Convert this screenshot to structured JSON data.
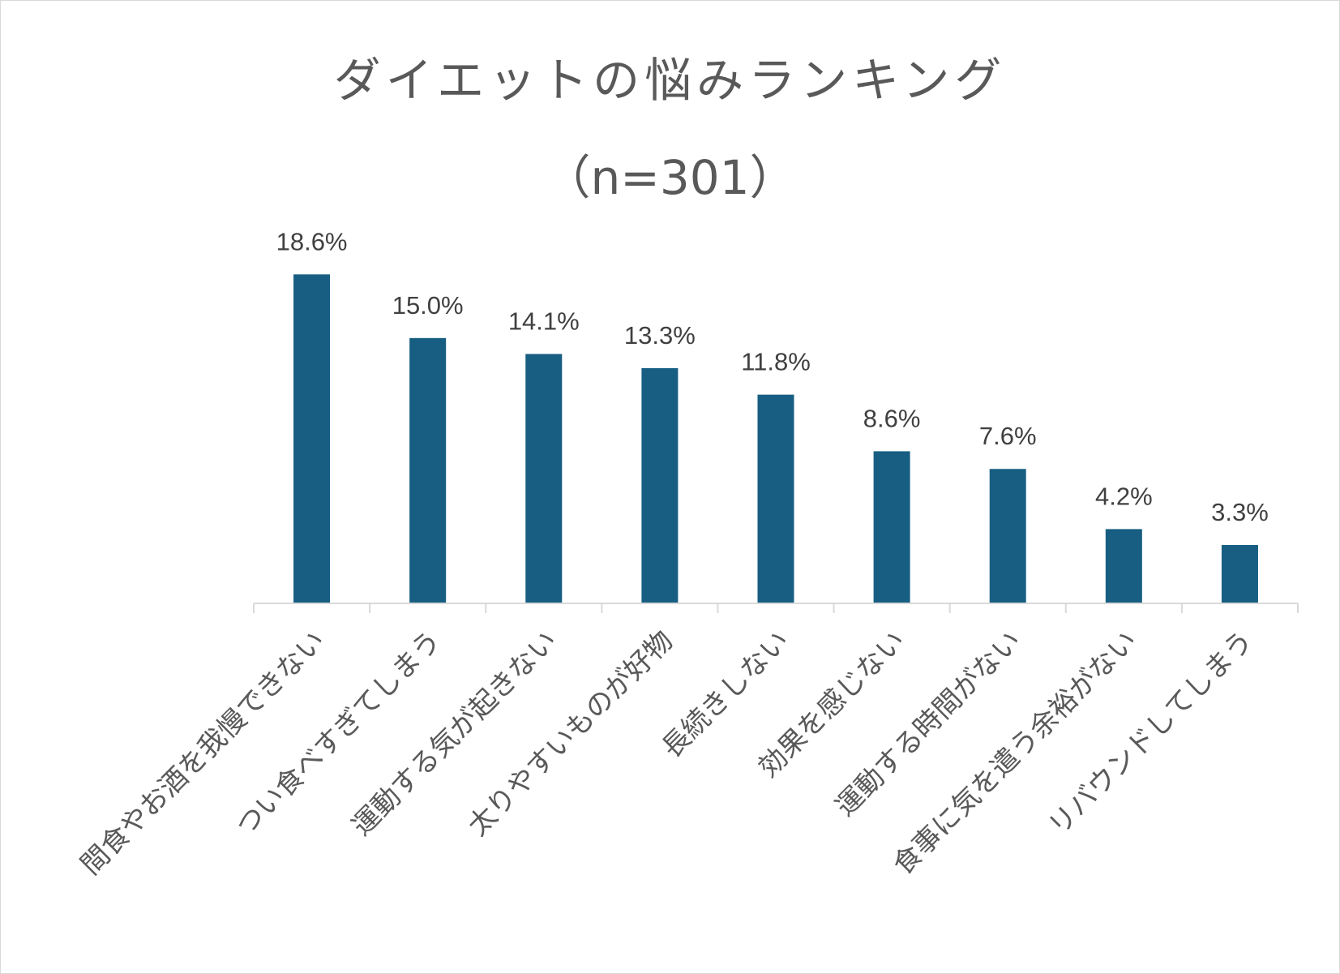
{
  "chart_data": {
    "type": "bar",
    "title_line1": "ダイエットの悩みランキング",
    "title_line2": "（n=301）",
    "categories": [
      "間食やお酒を我慢できない",
      "つい食べすぎてしまう",
      "運動する気が起きない",
      "太りやすいものが好物",
      "長続きしない",
      "効果を感じない",
      "運動する時間がない",
      "食事に気を遣う余裕がない",
      "リバウンドしてしまう"
    ],
    "values": [
      18.6,
      15.0,
      14.1,
      13.3,
      11.8,
      8.6,
      7.6,
      4.2,
      3.3
    ],
    "data_labels": [
      "18.6%",
      "15.0%",
      "14.1%",
      "13.3%",
      "11.8%",
      "8.6%",
      "7.6%",
      "4.2%",
      "3.3%"
    ],
    "ylim": [
      0,
      20
    ],
    "xlabel": "",
    "ylabel": "",
    "grid": false,
    "legend": "none",
    "bar_color": "#175E82",
    "axis_color": "#d9d9d9"
  }
}
